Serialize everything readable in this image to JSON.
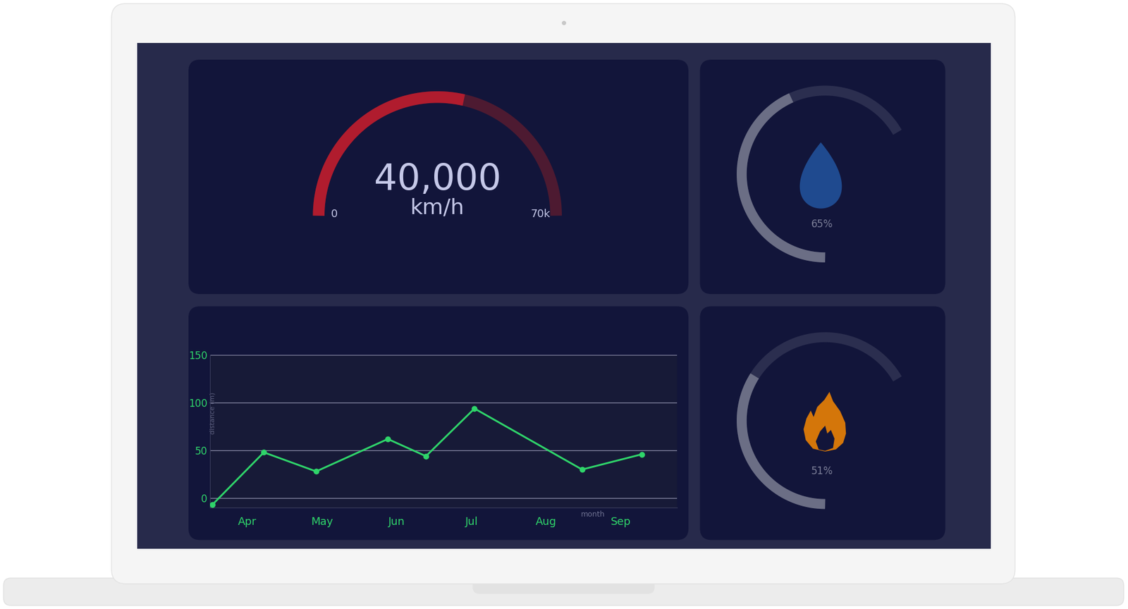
{
  "chart_data": [
    {
      "type": "gauge",
      "values": [
        40000
      ],
      "value_labels": [
        "40,000"
      ],
      "unit": "km/h",
      "ylim": [
        0,
        70000
      ],
      "yticks": [
        0,
        {
          "value": 70000,
          "label": "70k"
        }
      ],
      "color": "#b01c2e"
    },
    {
      "type": "ring",
      "values": [
        65
      ],
      "value_labels": [
        "65%"
      ],
      "ylim": [
        0,
        100
      ],
      "color": "#6b6e85"
    },
    {
      "type": "ring",
      "values": [
        51
      ],
      "value_labels": [
        "51%"
      ],
      "ylim": [
        0,
        100
      ],
      "color": "#6b6e85"
    },
    {
      "type": "line",
      "x": [
        -0.47,
        0.22,
        0.92,
        1.88,
        2.39,
        3.04,
        4.48,
        5.28
      ],
      "values": [
        -7,
        48,
        28,
        62,
        44,
        94,
        30,
        46
      ],
      "xlim": [
        -0.5,
        5.75
      ],
      "xticks": [
        {
          "value": 0,
          "label": "Apr"
        },
        {
          "value": 1,
          "label": "May"
        },
        {
          "value": 2,
          "label": "Jun"
        },
        {
          "value": 3,
          "label": "Jul"
        },
        {
          "value": 4,
          "label": "Aug"
        },
        {
          "value": 5,
          "label": "Sep"
        }
      ],
      "ylim": [
        -10,
        150
      ],
      "yticks": [
        0,
        50,
        100,
        150
      ],
      "x_label": "month",
      "y_label": "distance (m)",
      "color": "#2fd46a",
      "marker": "circle",
      "grid": true
    }
  ]
}
